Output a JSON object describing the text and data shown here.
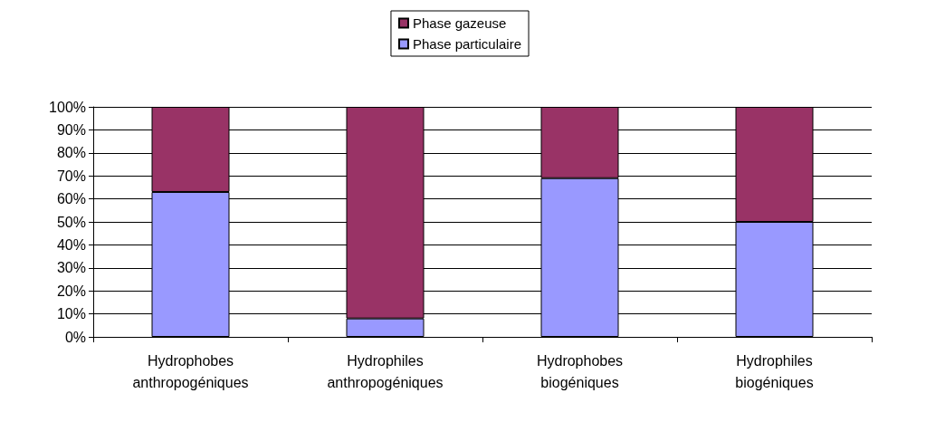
{
  "chart_data": {
    "type": "bar",
    "stacked": true,
    "categories": [
      "Hydrophobes\nanthropogéniques",
      "Hydrophiles\nanthropogéniques",
      "Hydrophobes\nbiogéniques",
      "Hydrophiles\nbiogéniques"
    ],
    "series": [
      {
        "name": "Phase particulaire",
        "color": "#9999ff",
        "values": [
          63,
          8,
          69,
          50
        ]
      },
      {
        "name": "Phase gazeuse",
        "color": "#993366",
        "values": [
          37,
          92,
          31,
          50
        ]
      }
    ],
    "ylim": [
      0,
      100
    ],
    "yticks": [
      {
        "value": 0,
        "label": "0%"
      },
      {
        "value": 10,
        "label": "10%"
      },
      {
        "value": 20,
        "label": "20%"
      },
      {
        "value": 30,
        "label": "30%"
      },
      {
        "value": 40,
        "label": "40%"
      },
      {
        "value": 50,
        "label": "50%"
      },
      {
        "value": 60,
        "label": "60%"
      },
      {
        "value": 70,
        "label": "70%"
      },
      {
        "value": 80,
        "label": "80%"
      },
      {
        "value": 90,
        "label": "90%"
      },
      {
        "value": 100,
        "label": "100%"
      }
    ],
    "grid": "y",
    "legend": "top"
  }
}
